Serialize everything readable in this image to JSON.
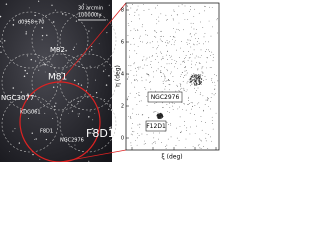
{
  "left_panel": {
    "scale_angle": "30 arcmin",
    "scale_length": "100000ly",
    "labels": [
      "d0958+70",
      "M82",
      "M81",
      "NGC3077",
      "KDG061",
      "NGC2976",
      "F8D1"
    ]
  },
  "right_panel": {
    "x_label": "ξ (deg)",
    "y_label": "η (deg)",
    "yticks": [
      "8",
      "6",
      "4",
      "2",
      "0"
    ],
    "xticks": [
      "8",
      "6",
      "4",
      "2",
      "0"
    ],
    "labels": [
      "NGC2976",
      "F12D1"
    ]
  }
}
